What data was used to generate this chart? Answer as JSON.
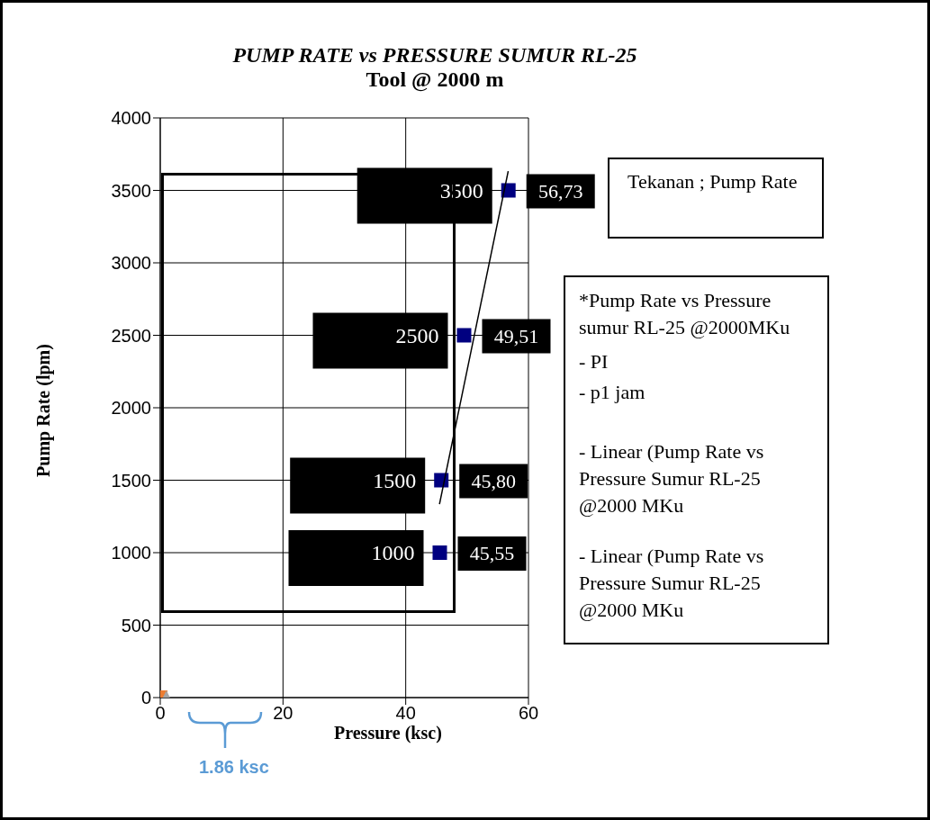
{
  "chart_data": {
    "type": "scatter",
    "title": "PUMP RATE vs PRESSURE SUMUR RL-25",
    "subtitle": "Tool @ 2000 m",
    "xlabel": "Pressure (ksc)",
    "ylabel": "Pump Rate (lpm)",
    "xlim": [
      0,
      60
    ],
    "xticks": [
      0,
      20,
      40,
      60
    ],
    "ylim": [
      0,
      4000
    ],
    "yticks": [
      0,
      500,
      1000,
      1500,
      2000,
      2500,
      3000,
      3500,
      4000
    ],
    "grid": true,
    "legend": false,
    "data_labels": true,
    "series": [
      {
        "x": [
          56.73,
          49.51,
          45.8,
          45.55
        ],
        "values": [
          3500,
          2500,
          1500,
          1000
        ],
        "color": "#000080",
        "marker": "square"
      },
      {
        "type": "scatter",
        "x": [
          0
        ],
        "values": [
          0
        ],
        "color": "#ed7d31",
        "marker": "square",
        "data_labels": false
      },
      {
        "type": "scatter",
        "x": [
          1
        ],
        "values": [
          0
        ],
        "color": "#a5a5a5",
        "marker": "triangle",
        "data_labels": false
      },
      {
        "type": "line",
        "x": [
          45.5,
          56.7
        ],
        "values": [
          1335,
          3633
        ],
        "color": "#000000",
        "marker": "none",
        "data_labels": false
      }
    ],
    "annotations": [
      {
        "text": "56,73",
        "x": 56.73,
        "y": 3500
      },
      {
        "text": "49,51",
        "x": 49.51,
        "y": 2500
      },
      {
        "text": "45,80",
        "x": 45.8,
        "y": 1500
      },
      {
        "text": "45,55",
        "x": 45.55,
        "y": 1000
      },
      "Tekanan ; Pump Rate",
      "*Pump Rate vs Pressure sumur  RL-25 @2000MKu",
      "- PI",
      "- p1 jam",
      "- Linear  (Pump Rate vs Pressure Sumur RL-25 @2000 MKu",
      "- Linear (Pump Rate vs Pressure Sumur RL-25 @2000 MKu",
      "1.86 ksc"
    ]
  }
}
